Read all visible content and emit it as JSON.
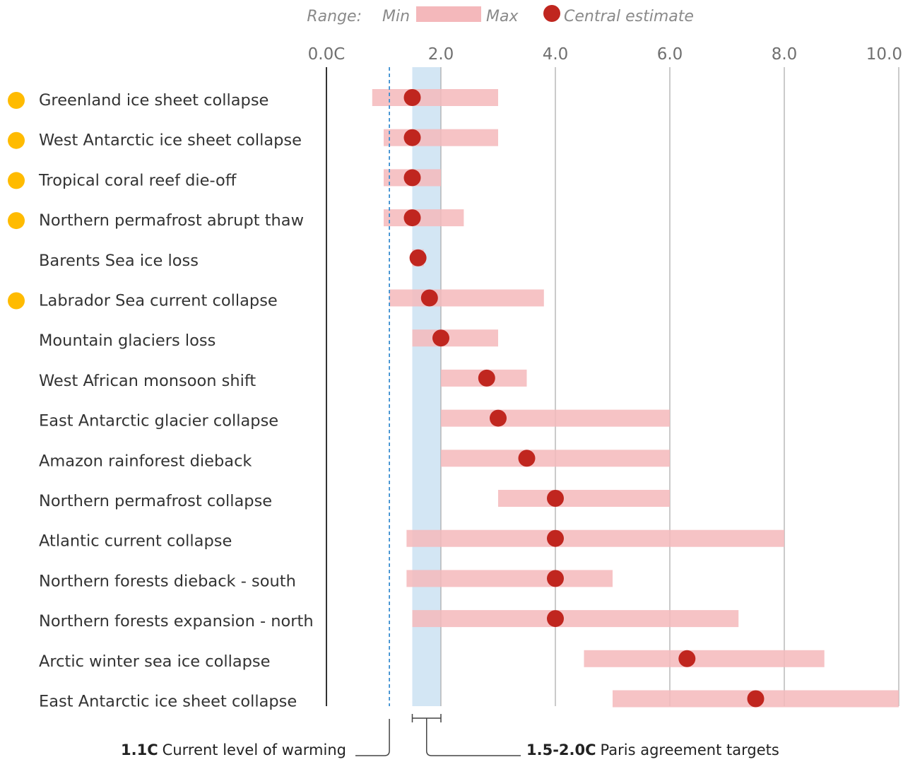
{
  "legend": {
    "range_label": "Range:",
    "min_label": "Min",
    "max_label": "Max",
    "central_label": "Central estimate",
    "range_color": "#f4b8bb",
    "central_color": "#c0261f"
  },
  "annotations": {
    "current_value": "1.1C",
    "current_text": "Current level of warming",
    "paris_value": "1.5-2.0C",
    "paris_text": "Paris agreement targets"
  },
  "colors": {
    "highlight": "#ffbb00",
    "paris_band": "#d3e6f4",
    "current_line": "#3b8fd1",
    "gridline": "#a8a8a8",
    "axis": "#333333"
  },
  "chart_data": {
    "type": "range-dot",
    "x_tick_labels": [
      "0.0C",
      "2.0",
      "4.0",
      "6.0",
      "8.0",
      "10.0"
    ],
    "x_ticks": [
      0,
      2,
      4,
      6,
      8,
      10
    ],
    "xlim": [
      0,
      10
    ],
    "current_warming": 1.1,
    "paris_range": [
      1.5,
      2.0
    ],
    "rows": [
      {
        "label": "Greenland ice sheet collapse",
        "min": 0.8,
        "max": 3.0,
        "central": 1.5,
        "highlight": true
      },
      {
        "label": "West Antarctic ice sheet collapse",
        "min": 1.0,
        "max": 3.0,
        "central": 1.5,
        "highlight": true
      },
      {
        "label": "Tropical coral reef die-off",
        "min": 1.0,
        "max": 2.0,
        "central": 1.5,
        "highlight": true
      },
      {
        "label": "Northern permafrost abrupt thaw",
        "min": 1.0,
        "max": 2.4,
        "central": 1.5,
        "highlight": true
      },
      {
        "label": "Barents Sea ice loss",
        "min": 1.5,
        "max": 1.7,
        "central": 1.6,
        "highlight": false
      },
      {
        "label": "Labrador Sea current collapse",
        "min": 1.1,
        "max": 3.8,
        "central": 1.8,
        "highlight": true
      },
      {
        "label": "Mountain glaciers loss",
        "min": 1.5,
        "max": 3.0,
        "central": 2.0,
        "highlight": false
      },
      {
        "label": "West African monsoon shift",
        "min": 2.0,
        "max": 3.5,
        "central": 2.8,
        "highlight": false
      },
      {
        "label": "East Antarctic glacier collapse",
        "min": 2.0,
        "max": 6.0,
        "central": 3.0,
        "highlight": false
      },
      {
        "label": "Amazon rainforest dieback",
        "min": 2.0,
        "max": 6.0,
        "central": 3.5,
        "highlight": false
      },
      {
        "label": "Northern permafrost collapse",
        "min": 3.0,
        "max": 6.0,
        "central": 4.0,
        "highlight": false
      },
      {
        "label": "Atlantic current collapse",
        "min": 1.4,
        "max": 8.0,
        "central": 4.0,
        "highlight": false
      },
      {
        "label": "Northern forests dieback - south",
        "min": 1.4,
        "max": 5.0,
        "central": 4.0,
        "highlight": false
      },
      {
        "label": "Northern forests expansion - north",
        "min": 1.5,
        "max": 7.2,
        "central": 4.0,
        "highlight": false
      },
      {
        "label": "Arctic winter sea ice collapse",
        "min": 4.5,
        "max": 8.7,
        "central": 6.3,
        "highlight": false
      },
      {
        "label": "East Antarctic ice sheet collapse",
        "min": 5.0,
        "max": 10.0,
        "central": 7.5,
        "highlight": false
      }
    ]
  }
}
